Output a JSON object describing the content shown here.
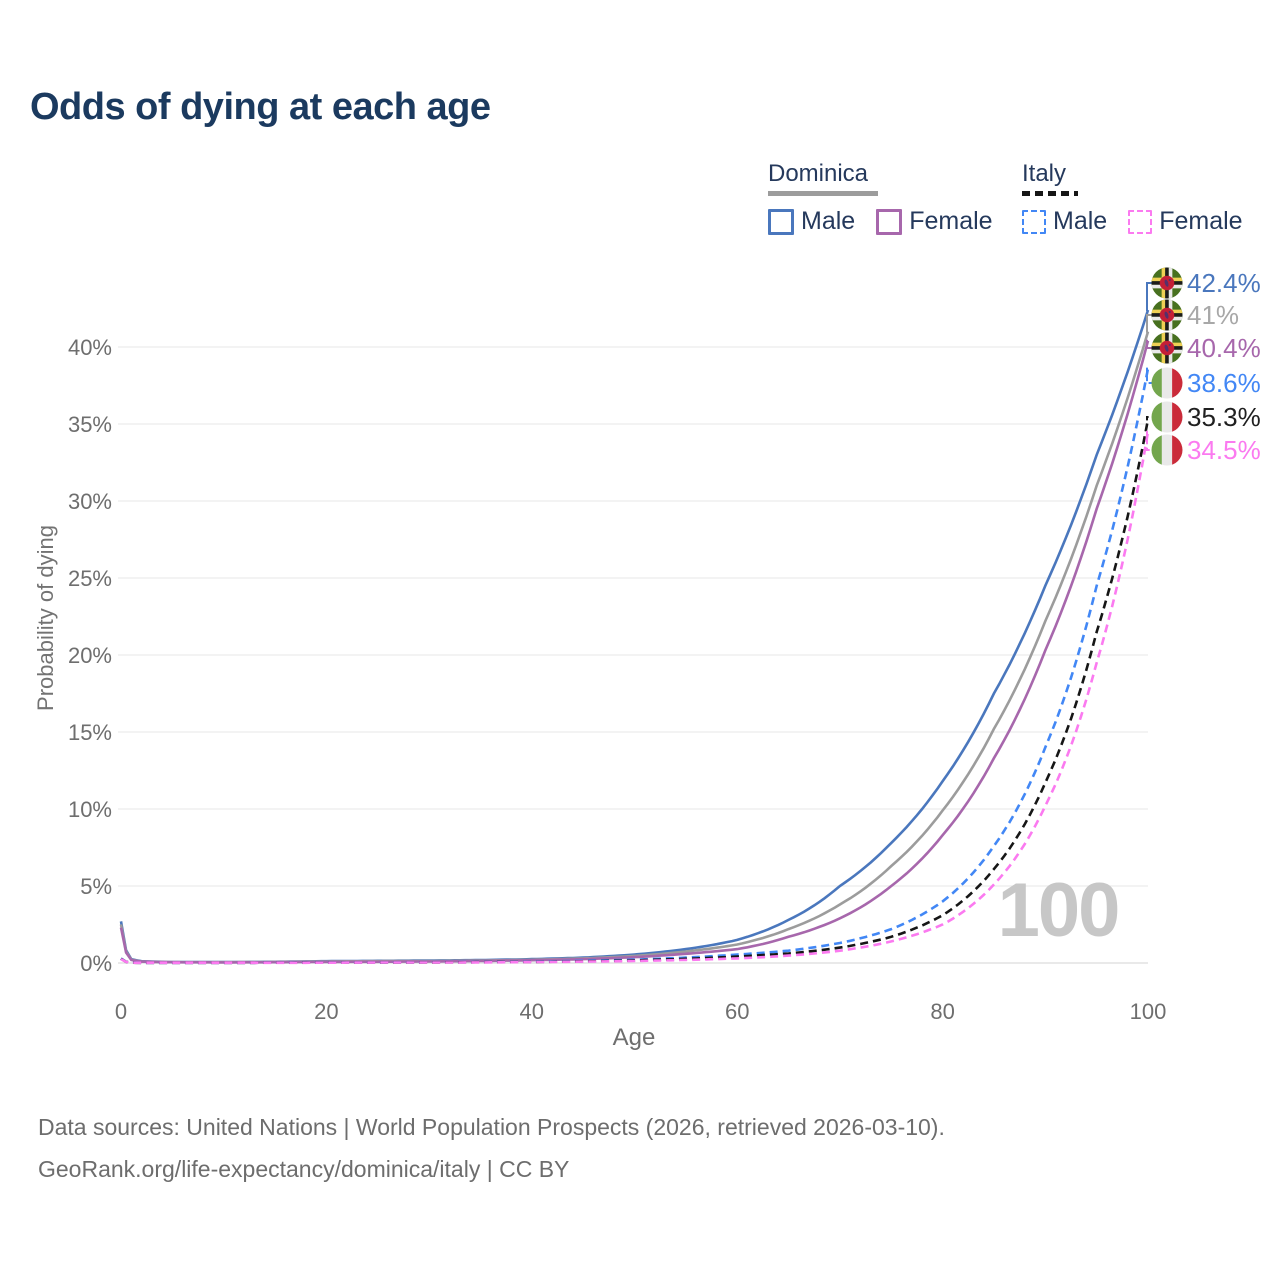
{
  "title": "Odds of dying at each age",
  "watermark": "100",
  "legend": {
    "groups": [
      {
        "name": "Dominica",
        "line_style": "solid",
        "underline_color": "#9c9c9c",
        "items": [
          {
            "label": "Male",
            "color": "#4a77bd"
          },
          {
            "label": "Female",
            "color": "#a767ac"
          }
        ]
      },
      {
        "name": "Italy",
        "line_style": "dashed",
        "underline_color": "#161616",
        "items": [
          {
            "label": "Male",
            "color": "#4287f5"
          },
          {
            "label": "Female",
            "color": "#fb7af0"
          }
        ]
      }
    ]
  },
  "footer": {
    "line1": "Data sources: United Nations | World Population Prospects (2026, retrieved 2026-03-10).",
    "line2": "GeoRank.org/life-expectancy/dominica/italy | CC BY"
  },
  "chart_data": {
    "type": "line",
    "title": "Odds of dying at each age",
    "xlabel": "Age",
    "ylabel": "Probability of dying",
    "xlim": [
      0,
      100
    ],
    "ylim_percent": [
      0,
      44
    ],
    "grid": "horizontal",
    "legend_position": "top-right",
    "x_ticks": [
      0,
      20,
      40,
      60,
      80,
      100
    ],
    "x_tick_labels": [
      "0",
      "20",
      "40",
      "60",
      "80",
      "100"
    ],
    "y_ticks": [
      0,
      5,
      10,
      15,
      20,
      25,
      30,
      35,
      40
    ],
    "y_tick_labels": [
      "0%",
      "5%",
      "10%",
      "15%",
      "20%",
      "25%",
      "30%",
      "35%",
      "40%"
    ],
    "ages": [
      0,
      1,
      2,
      5,
      10,
      15,
      20,
      25,
      30,
      35,
      40,
      45,
      50,
      55,
      60,
      65,
      70,
      75,
      80,
      85,
      90,
      95,
      100
    ],
    "series": [
      {
        "id": "dominica-male",
        "country": "Dominica",
        "sex": "Male",
        "color": "#4a77bd",
        "label_color": "#4a77bd",
        "dash": "solid",
        "flag": "dominica",
        "end_label": "42.4%",
        "end_value_percent": 42.4,
        "values": [
          2.7,
          0.25,
          0.12,
          0.06,
          0.06,
          0.08,
          0.12,
          0.14,
          0.16,
          0.19,
          0.25,
          0.35,
          0.55,
          0.9,
          1.5,
          2.8,
          5.0,
          7.8,
          11.8,
          17.5,
          24.5,
          33.0,
          42.4
        ]
      },
      {
        "id": "dominica-both-sexes",
        "country": "Dominica",
        "sex": "Both",
        "color": "#9c9c9c",
        "label_color": "#a8a8a8",
        "dash": "solid",
        "flag": "dominica",
        "end_label": "41%",
        "end_value_percent": 41,
        "values": [
          2.5,
          0.22,
          0.1,
          0.05,
          0.05,
          0.07,
          0.1,
          0.12,
          0.13,
          0.16,
          0.21,
          0.3,
          0.46,
          0.75,
          1.2,
          2.2,
          3.8,
          6.3,
          9.9,
          15.2,
          22.2,
          31.0,
          41.0
        ]
      },
      {
        "id": "dominica-female",
        "country": "Dominica",
        "sex": "Female",
        "color": "#a767ac",
        "label_color": "#a767ac",
        "dash": "solid",
        "flag": "dominica",
        "end_label": "40.4%",
        "end_value_percent": 40.4,
        "values": [
          2.3,
          0.2,
          0.09,
          0.05,
          0.04,
          0.05,
          0.07,
          0.08,
          0.1,
          0.13,
          0.18,
          0.25,
          0.38,
          0.6,
          0.9,
          1.7,
          2.9,
          5.0,
          8.3,
          13.3,
          20.3,
          29.5,
          40.4
        ]
      },
      {
        "id": "italy-male",
        "country": "Italy",
        "sex": "Male",
        "color": "#4287f5",
        "label_color": "#4287f5",
        "dash": "dashed",
        "flag": "italy",
        "end_label": "38.6%",
        "end_value_percent": 38.6,
        "values": [
          0.3,
          0.02,
          0.015,
          0.01,
          0.01,
          0.02,
          0.04,
          0.04,
          0.05,
          0.06,
          0.09,
          0.14,
          0.22,
          0.35,
          0.55,
          0.8,
          1.3,
          2.2,
          4.0,
          7.6,
          14.0,
          24.5,
          38.6
        ]
      },
      {
        "id": "italy-both-sexes",
        "country": "Italy",
        "sex": "Both",
        "color": "#161616",
        "label_color": "#202020",
        "dash": "dashed",
        "flag": "italy",
        "end_label": "35.3%",
        "end_value_percent": 35.3,
        "values": [
          0.27,
          0.02,
          0.013,
          0.01,
          0.01,
          0.02,
          0.03,
          0.03,
          0.04,
          0.05,
          0.07,
          0.11,
          0.17,
          0.27,
          0.42,
          0.62,
          1.0,
          1.7,
          3.1,
          6.1,
          11.7,
          21.5,
          35.3
        ]
      },
      {
        "id": "italy-female",
        "country": "Italy",
        "sex": "Female",
        "color": "#fb7af0",
        "label_color": "#fb7af0",
        "dash": "dashed",
        "flag": "italy",
        "end_label": "34.5%",
        "end_value_percent": 34.5,
        "values": [
          0.25,
          0.02,
          0.012,
          0.01,
          0.01,
          0.01,
          0.02,
          0.03,
          0.03,
          0.04,
          0.06,
          0.09,
          0.13,
          0.2,
          0.3,
          0.48,
          0.8,
          1.4,
          2.5,
          5.1,
          10.2,
          19.5,
          34.5
        ]
      }
    ]
  }
}
